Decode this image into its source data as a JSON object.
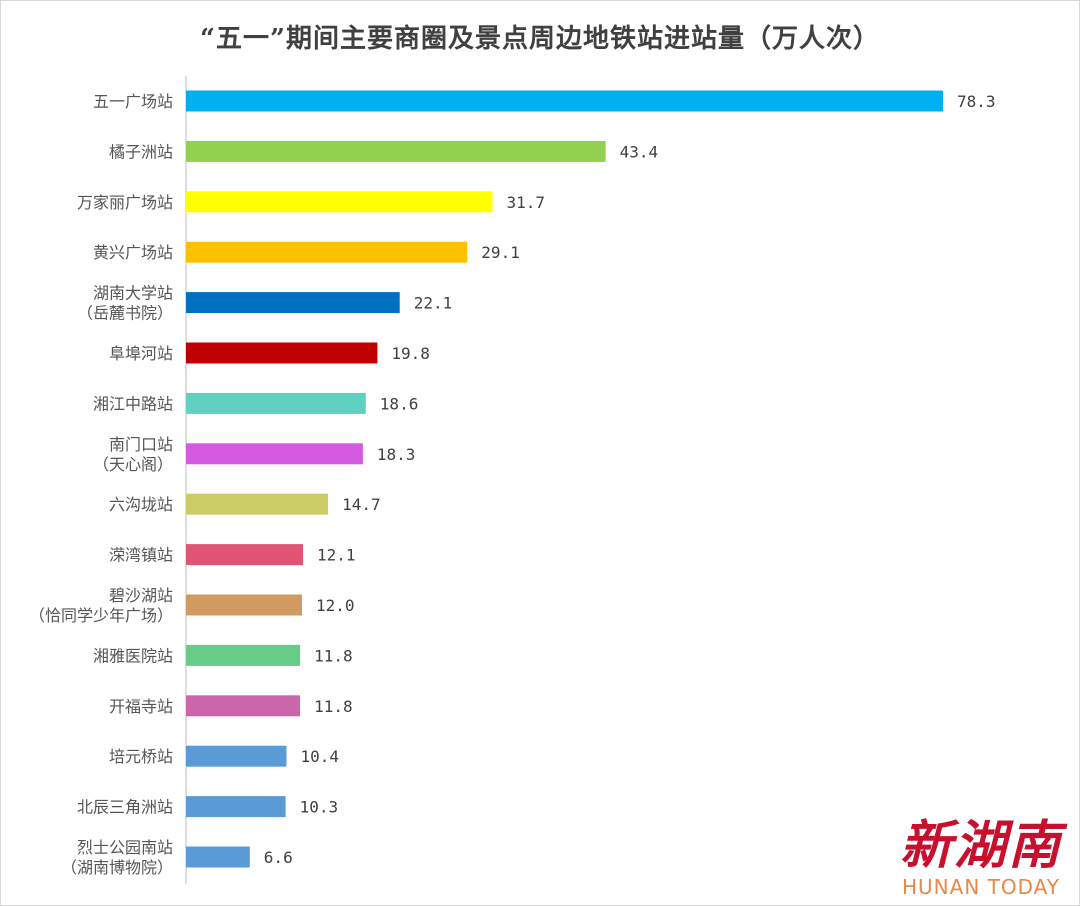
{
  "chart_data": {
    "type": "bar",
    "orientation": "horizontal",
    "title": "“五一”期间主要商圈及景点周边地铁站进站量（万人次）",
    "xlim": [
      0,
      78.3
    ],
    "grid": false,
    "legend": "none",
    "categories": [
      [
        "五一广场站"
      ],
      [
        "橘子洲站"
      ],
      [
        "万家丽广场站"
      ],
      [
        "黄兴广场站"
      ],
      [
        "湖南大学站",
        "（岳麓书院）"
      ],
      [
        "阜埠河站"
      ],
      [
        "湘江中路站"
      ],
      [
        "南门口站",
        "（天心阁）"
      ],
      [
        "六沟垅站"
      ],
      [
        "溁湾镇站"
      ],
      [
        "碧沙湖站",
        "（恰同学少年广场）"
      ],
      [
        "湘雅医院站"
      ],
      [
        "开福寺站"
      ],
      [
        "培元桥站"
      ],
      [
        "北辰三角洲站"
      ],
      [
        "烈士公园南站",
        "（湖南博物院）"
      ]
    ],
    "values": [
      78.3,
      43.4,
      31.7,
      29.1,
      22.1,
      19.8,
      18.6,
      18.3,
      14.7,
      12.1,
      12.0,
      11.8,
      11.8,
      10.4,
      10.3,
      6.6
    ],
    "value_labels": [
      "78.3",
      "43.4",
      "31.7",
      "29.1",
      "22.1",
      "19.8",
      "18.6",
      "18.3",
      "14.7",
      "12.1",
      "12.0",
      "11.8",
      "11.8",
      "10.4",
      "10.3",
      "6.6"
    ],
    "colors": [
      "#00b0f0",
      "#92d050",
      "#ffff00",
      "#ffc000",
      "#0070c0",
      "#c00000",
      "#5fd0c2",
      "#d55adf",
      "#cccc66",
      "#e05574",
      "#d09a60",
      "#66cc88",
      "#cc66aa",
      "#5b9bd5",
      "#5b9bd5",
      "#5b9bd5"
    ]
  },
  "watermark": {
    "chinese": "新湖南",
    "english": "HUNAN TODAY"
  }
}
